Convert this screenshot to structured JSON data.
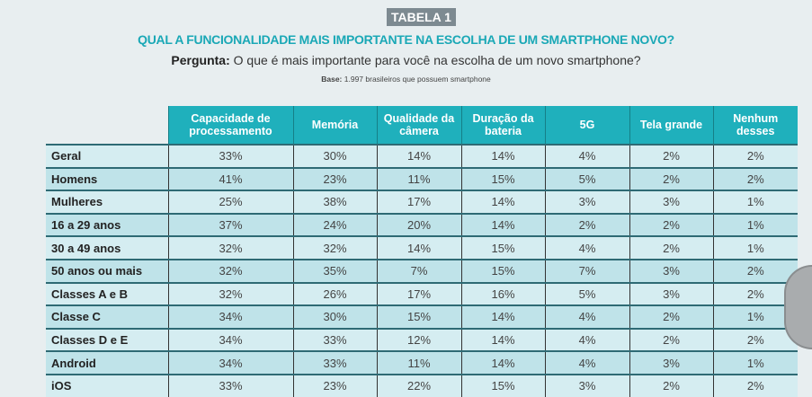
{
  "tag": "TABELA 1",
  "title": "QUAL A FUNCIONALIDADE MAIS IMPORTANTE NA ESCOLHA DE UM SMARTPHONE NOVO?",
  "question_label": "Pergunta:",
  "question": " O que é mais importante para você na escolha de um novo smartphone?",
  "base_label": "Base:",
  "base": " 1.997 brasileiros que possuem smartphone",
  "columns": [
    "Capacidade de processamento",
    "Memória",
    "Qualidade da câmera",
    "Duração da bateria",
    "5G",
    "Tela grande",
    "Nenhum desses"
  ],
  "rows": [
    {
      "label": "Geral",
      "values": [
        "33%",
        "30%",
        "14%",
        "14%",
        "4%",
        "2%",
        "2%"
      ]
    },
    {
      "label": "Homens",
      "values": [
        "41%",
        "23%",
        "11%",
        "15%",
        "5%",
        "2%",
        "2%"
      ]
    },
    {
      "label": "Mulheres",
      "values": [
        "25%",
        "38%",
        "17%",
        "14%",
        "3%",
        "3%",
        "1%"
      ]
    },
    {
      "label": "16 a 29 anos",
      "values": [
        "37%",
        "24%",
        "20%",
        "14%",
        "2%",
        "2%",
        "1%"
      ]
    },
    {
      "label": "30 a 49 anos",
      "values": [
        "32%",
        "32%",
        "14%",
        "15%",
        "4%",
        "2%",
        "1%"
      ]
    },
    {
      "label": "50 anos ou mais",
      "values": [
        "32%",
        "35%",
        "7%",
        "15%",
        "7%",
        "3%",
        "2%"
      ]
    },
    {
      "label": "Classes A e B",
      "values": [
        "32%",
        "26%",
        "17%",
        "16%",
        "5%",
        "3%",
        "2%"
      ]
    },
    {
      "label": "Classe C",
      "values": [
        "34%",
        "30%",
        "15%",
        "14%",
        "4%",
        "2%",
        "1%"
      ]
    },
    {
      "label": "Classes D e E",
      "values": [
        "34%",
        "33%",
        "12%",
        "14%",
        "4%",
        "2%",
        "2%"
      ]
    },
    {
      "label": "Android",
      "values": [
        "34%",
        "33%",
        "11%",
        "14%",
        "4%",
        "3%",
        "1%"
      ]
    },
    {
      "label": "iOS",
      "values": [
        "33%",
        "23%",
        "22%",
        "15%",
        "3%",
        "2%",
        "2%"
      ]
    }
  ]
}
